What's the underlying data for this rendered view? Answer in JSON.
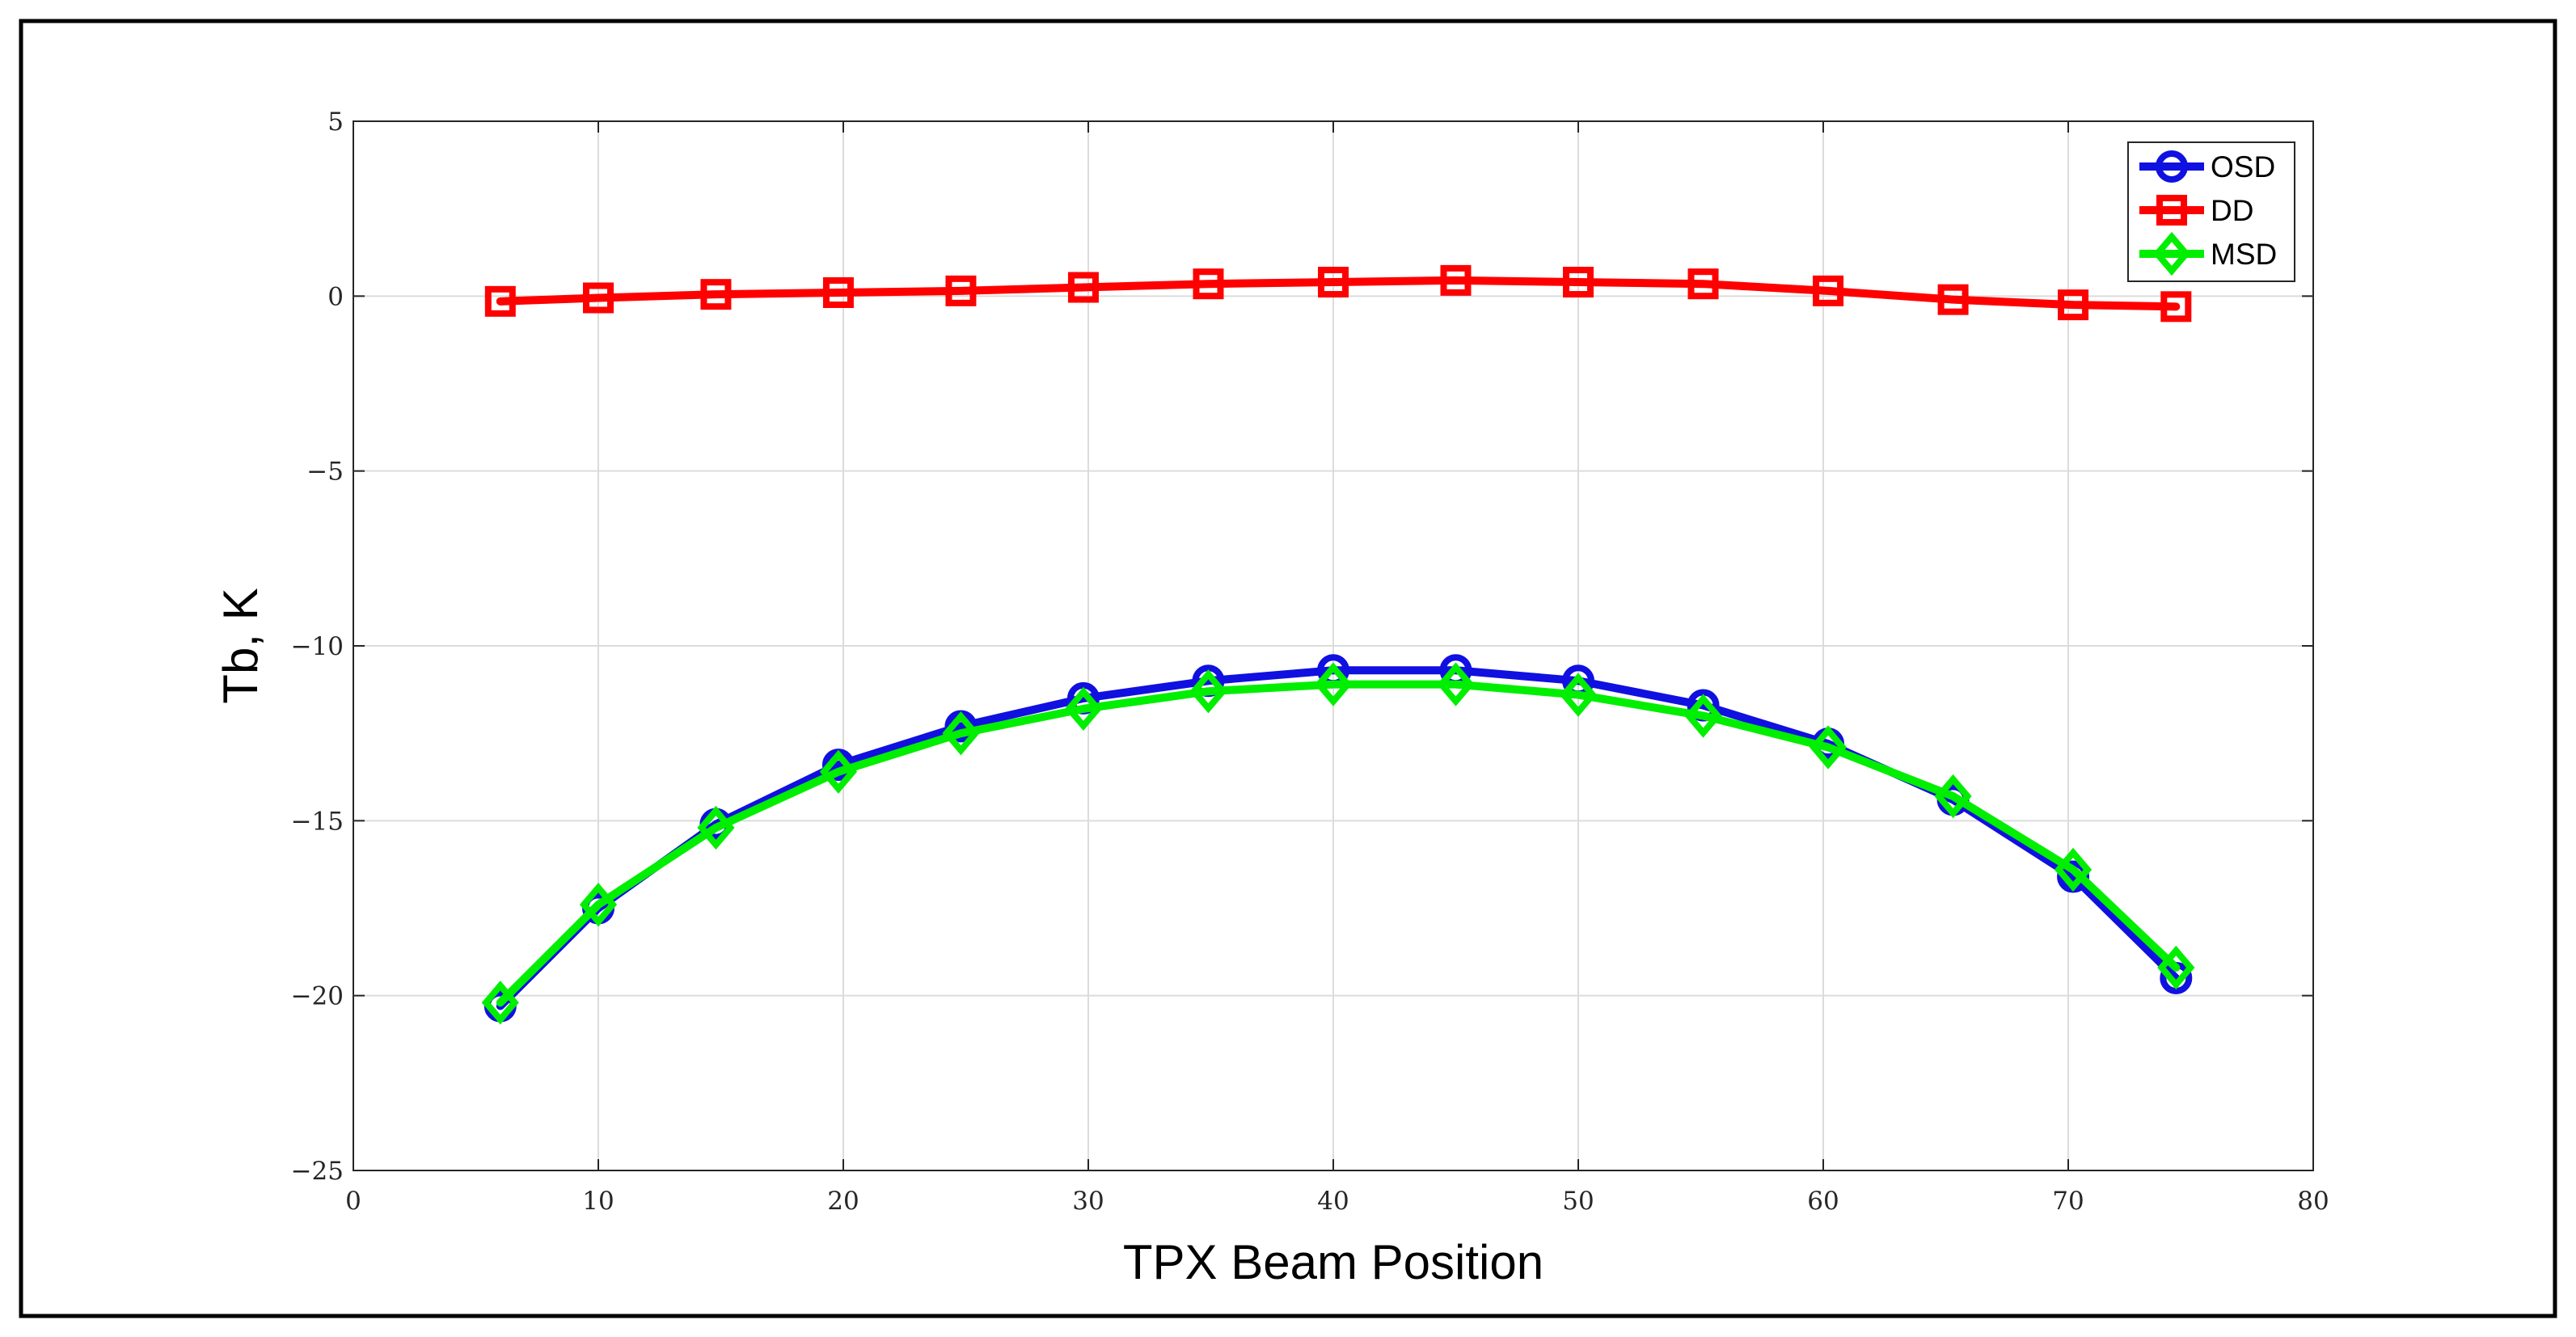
{
  "chart_data": {
    "type": "line",
    "xlabel": "TPX Beam Position",
    "ylabel": "Tb, K",
    "xlim": [
      0,
      80
    ],
    "ylim": [
      -25,
      5
    ],
    "xticks": [
      0,
      10,
      20,
      30,
      40,
      50,
      60,
      70,
      80
    ],
    "yticks": [
      5,
      0,
      -5,
      -10,
      -15,
      -20,
      -25
    ],
    "xtick_labels": [
      "0",
      "10",
      "20",
      "30",
      "40",
      "50",
      "60",
      "70",
      "80"
    ],
    "ytick_labels": [
      "5",
      "0",
      "−5",
      "−10",
      "−15",
      "−20",
      "−25"
    ],
    "grid": true,
    "legend_position": "top-right",
    "x": [
      6,
      10,
      14.8,
      19.8,
      24.8,
      29.8,
      34.9,
      40,
      45,
      50,
      55.1,
      60.2,
      65.3,
      70.2,
      74.4
    ],
    "series": [
      {
        "name": "OSD",
        "color": "#1010e0",
        "marker": "circle",
        "values": [
          -20.3,
          -17.5,
          -15.1,
          -13.4,
          -12.3,
          -11.5,
          -11.0,
          -10.7,
          -10.7,
          -11.0,
          -11.7,
          -12.8,
          -14.4,
          -16.6,
          -19.5
        ]
      },
      {
        "name": "DD",
        "color": "#ff0000",
        "marker": "square",
        "values": [
          -0.15,
          -0.05,
          0.05,
          0.1,
          0.15,
          0.25,
          0.35,
          0.4,
          0.45,
          0.4,
          0.35,
          0.15,
          -0.1,
          -0.25,
          -0.3
        ]
      },
      {
        "name": "MSD",
        "color": "#00ee00",
        "marker": "diamond",
        "values": [
          -20.2,
          -17.4,
          -15.2,
          -13.6,
          -12.5,
          -11.8,
          -11.3,
          -11.1,
          -11.1,
          -11.4,
          -12.0,
          -12.9,
          -14.3,
          -16.4,
          -19.2
        ]
      }
    ]
  }
}
